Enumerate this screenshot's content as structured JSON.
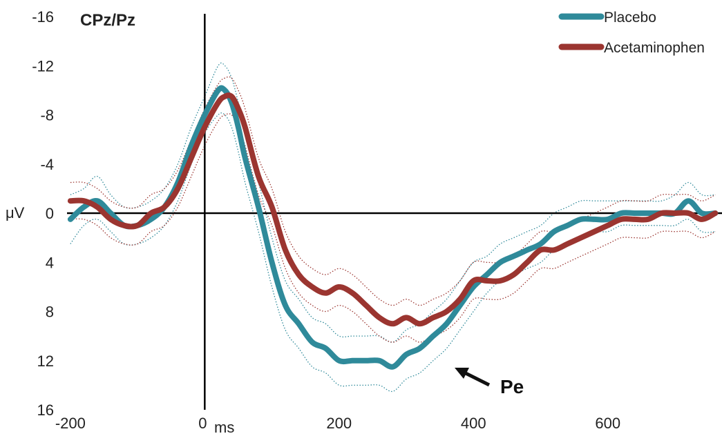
{
  "chart_data": {
    "type": "line",
    "title": "CPz/Pz",
    "ylabel": "μV",
    "xunit": "ms",
    "xlim": [
      -205,
      770
    ],
    "ylim": [
      -16,
      16
    ],
    "y_inverted": true,
    "grid": false,
    "legend_position": "top-right",
    "xticks": [
      {
        "value": -200,
        "label": "-200"
      },
      {
        "value": 0,
        "label": "0"
      },
      {
        "value": 200,
        "label": "200"
      },
      {
        "value": 400,
        "label": "400"
      },
      {
        "value": 600,
        "label": "600"
      }
    ],
    "yticks": [
      {
        "value": -16,
        "label": "-16"
      },
      {
        "value": -12,
        "label": "-12"
      },
      {
        "value": -8,
        "label": "-8"
      },
      {
        "value": -4,
        "label": "-4"
      },
      {
        "value": 0,
        "label": "0"
      },
      {
        "value": 4,
        "label": "4"
      },
      {
        "value": 8,
        "label": "8"
      },
      {
        "value": 12,
        "label": "12"
      },
      {
        "value": 16,
        "label": "16"
      }
    ],
    "x": [
      -200,
      -180,
      -160,
      -140,
      -120,
      -100,
      -80,
      -60,
      -40,
      -20,
      0,
      20,
      30,
      40,
      50,
      60,
      80,
      100,
      120,
      140,
      160,
      180,
      200,
      220,
      240,
      260,
      280,
      300,
      320,
      340,
      360,
      380,
      400,
      420,
      440,
      460,
      480,
      500,
      520,
      540,
      560,
      580,
      600,
      620,
      640,
      660,
      680,
      700,
      720,
      740,
      760
    ],
    "series": [
      {
        "name": "Placebo",
        "color": "#2f8a9a",
        "values": [
          0.5,
          -0.5,
          -1.0,
          0.0,
          1.0,
          1.0,
          0.5,
          -0.5,
          -2.5,
          -5.5,
          -8.0,
          -10.0,
          -10.0,
          -9.0,
          -7.0,
          -4.5,
          -0.5,
          4.0,
          7.5,
          9.0,
          10.5,
          11.0,
          12.0,
          12.0,
          12.0,
          12.0,
          12.5,
          11.5,
          11.0,
          10.0,
          9.0,
          7.5,
          6.0,
          5.0,
          4.0,
          3.5,
          3.0,
          2.5,
          1.5,
          1.0,
          0.5,
          0.5,
          0.5,
          0.0,
          0.0,
          0.0,
          0.0,
          0.0,
          -1.0,
          0.0,
          0.0
        ],
        "upper": [
          2.5,
          1.0,
          0.5,
          1.5,
          2.5,
          2.5,
          2.0,
          1.0,
          -1.0,
          -4.0,
          -6.5,
          -8.0,
          -8.0,
          -7.0,
          -5.0,
          -2.5,
          1.5,
          6.0,
          9.5,
          11.0,
          12.5,
          13.0,
          14.0,
          14.0,
          14.0,
          14.0,
          14.5,
          13.5,
          13.0,
          12.0,
          11.0,
          9.5,
          8.0,
          6.5,
          5.5,
          5.0,
          4.5,
          4.0,
          3.0,
          2.5,
          2.0,
          1.5,
          1.5,
          1.0,
          1.0,
          1.0,
          1.0,
          1.0,
          0.5,
          1.5,
          1.5
        ],
        "lower": [
          -1.5,
          -2.0,
          -3.0,
          -1.5,
          -0.5,
          -0.5,
          -1.0,
          -2.0,
          -4.0,
          -7.0,
          -9.5,
          -12.0,
          -12.0,
          -11.0,
          -9.0,
          -6.5,
          -2.5,
          2.0,
          5.5,
          7.0,
          8.5,
          9.0,
          10.0,
          10.0,
          10.0,
          10.0,
          10.5,
          9.5,
          9.0,
          8.0,
          7.0,
          5.5,
          4.0,
          3.5,
          2.5,
          2.0,
          1.5,
          1.0,
          0.0,
          -0.5,
          -1.0,
          -1.0,
          -1.0,
          -1.0,
          -1.0,
          -1.0,
          -1.0,
          -1.5,
          -2.5,
          -1.5,
          -1.5
        ]
      },
      {
        "name": "Acetaminophen",
        "color": "#9b3530",
        "values": [
          -1.0,
          -1.0,
          -0.5,
          0.5,
          1.0,
          1.0,
          0.0,
          -0.5,
          -2.0,
          -4.5,
          -7.0,
          -9.0,
          -9.5,
          -9.5,
          -8.5,
          -7.0,
          -3.0,
          -0.5,
          3.0,
          5.0,
          6.0,
          6.5,
          6.0,
          6.5,
          7.5,
          8.5,
          9.0,
          8.5,
          9.0,
          8.5,
          8.0,
          7.0,
          5.5,
          5.5,
          5.5,
          5.0,
          4.0,
          3.0,
          3.0,
          2.5,
          2.0,
          1.5,
          1.0,
          0.5,
          0.5,
          0.5,
          0.0,
          0.0,
          0.0,
          0.5,
          0.0
        ],
        "upper": [
          0.5,
          0.5,
          1.0,
          2.0,
          2.5,
          2.5,
          1.5,
          1.0,
          -0.5,
          -3.0,
          -5.5,
          -7.5,
          -8.0,
          -8.0,
          -7.0,
          -5.5,
          -1.5,
          1.0,
          4.5,
          6.5,
          7.5,
          8.0,
          7.5,
          8.0,
          9.0,
          10.0,
          10.5,
          10.0,
          10.5,
          10.0,
          9.5,
          8.5,
          7.0,
          7.0,
          7.0,
          6.5,
          5.5,
          4.5,
          4.5,
          4.0,
          3.5,
          3.0,
          2.5,
          2.0,
          2.0,
          2.0,
          1.5,
          1.5,
          1.5,
          2.0,
          1.5
        ],
        "lower": [
          -2.5,
          -2.5,
          -2.0,
          -1.0,
          -0.5,
          -0.5,
          -1.5,
          -2.0,
          -3.5,
          -6.0,
          -8.5,
          -10.5,
          -11.0,
          -11.0,
          -10.0,
          -8.5,
          -4.5,
          -2.0,
          1.5,
          3.5,
          4.5,
          5.0,
          4.5,
          5.0,
          6.0,
          7.0,
          7.5,
          7.0,
          7.5,
          7.0,
          6.5,
          5.5,
          4.0,
          4.0,
          4.0,
          3.5,
          2.5,
          1.5,
          1.5,
          1.0,
          0.5,
          0.0,
          -0.5,
          -1.0,
          -1.0,
          -1.0,
          -1.5,
          -1.5,
          -1.5,
          -1.0,
          -1.5
        ]
      }
    ],
    "annotations": [
      {
        "text": "Pe",
        "x": 370,
        "y": 12.8
      }
    ]
  }
}
